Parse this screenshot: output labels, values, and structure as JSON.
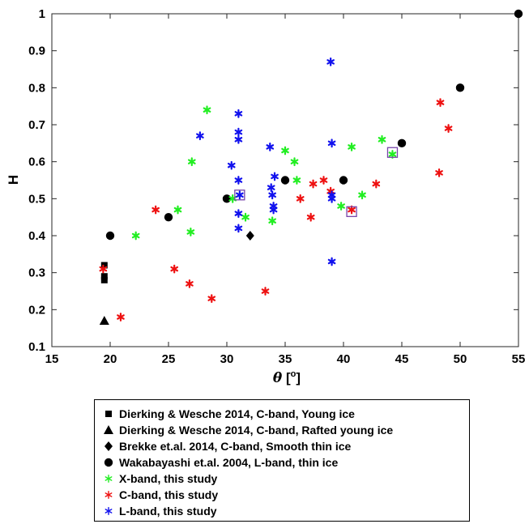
{
  "chart_data": {
    "type": "scatter",
    "xlabel": "θ [o]",
    "ylabel": "H",
    "xlim": [
      15,
      55
    ],
    "ylim": [
      0.1,
      1
    ],
    "xticks": [
      "15",
      "20",
      "25",
      "30",
      "35",
      "40",
      "45",
      "50",
      "55"
    ],
    "yticks": [
      "0.1",
      "0.2",
      "0.3",
      "0.4",
      "0.5",
      "0.6",
      "0.7",
      "0.8",
      "0.9",
      "1"
    ],
    "grid": false,
    "legend_position": "bottom-outside",
    "series": [
      {
        "name": "Dierking & Wesche 2014, C-band, Young ice",
        "marker": "square",
        "color": "#000000",
        "x": [
          19.5,
          19.5,
          19.5
        ],
        "y": [
          0.32,
          0.29,
          0.28
        ]
      },
      {
        "name": "Dierking & Wesche 2014, C-band, Rafted young ice",
        "marker": "triangle",
        "color": "#000000",
        "x": [
          19.5
        ],
        "y": [
          0.17
        ]
      },
      {
        "name": "Brekke et.al. 2014, C-band, Smooth thin ice",
        "marker": "diamond",
        "color": "#000000",
        "x": [
          32
        ],
        "y": [
          0.4
        ]
      },
      {
        "name": "Wakabayashi et.al. 2004, L-band, thin ice",
        "marker": "circle",
        "color": "#000000",
        "x": [
          20,
          25,
          30,
          35,
          40,
          45,
          50,
          55
        ],
        "y": [
          0.4,
          0.45,
          0.5,
          0.55,
          0.55,
          0.65,
          0.8,
          1.0
        ]
      },
      {
        "name": "X-band, this study",
        "marker": "star",
        "color": "#22ee22",
        "x": [
          22.2,
          25.8,
          26.9,
          27.0,
          28.3,
          30.5,
          31.6,
          33.9,
          35.0,
          35.8,
          36.0,
          39.8,
          40.7,
          41.6,
          43.3,
          44.2
        ],
        "y": [
          0.4,
          0.47,
          0.41,
          0.6,
          0.74,
          0.5,
          0.45,
          0.44,
          0.63,
          0.6,
          0.55,
          0.48,
          0.64,
          0.51,
          0.66,
          0.62
        ]
      },
      {
        "name": "C-band, this study",
        "marker": "star",
        "color": "#ee1111",
        "x": [
          19.4,
          20.9,
          23.9,
          25.5,
          26.8,
          28.7,
          33.3,
          36.3,
          37.2,
          37.4,
          38.3,
          38.9,
          40.7,
          42.8,
          48.2,
          48.3,
          49.0
        ],
        "y": [
          0.31,
          0.18,
          0.47,
          0.31,
          0.27,
          0.23,
          0.25,
          0.5,
          0.45,
          0.54,
          0.55,
          0.52,
          0.47,
          0.54,
          0.57,
          0.76,
          0.69
        ]
      },
      {
        "name": "L-band, this study",
        "marker": "star",
        "color": "#1111ee",
        "x": [
          27.7,
          30.4,
          31.0,
          31.0,
          31.0,
          31.0,
          31.0,
          31.0,
          31.1,
          33.7,
          33.8,
          33.9,
          34.0,
          34.0,
          34.1,
          38.9,
          39.0,
          39.0,
          39.0,
          39.0
        ],
        "y": [
          0.67,
          0.59,
          0.73,
          0.68,
          0.66,
          0.55,
          0.46,
          0.42,
          0.51,
          0.64,
          0.53,
          0.51,
          0.48,
          0.47,
          0.56,
          0.87,
          0.65,
          0.51,
          0.5,
          0.33
        ]
      }
    ],
    "highlighted_points": [
      {
        "x": 31.1,
        "y": 0.51,
        "color": "#7744aa"
      },
      {
        "x": 40.7,
        "y": 0.465,
        "color": "#7744aa"
      },
      {
        "x": 44.2,
        "y": 0.625,
        "color": "#7744aa"
      }
    ]
  }
}
